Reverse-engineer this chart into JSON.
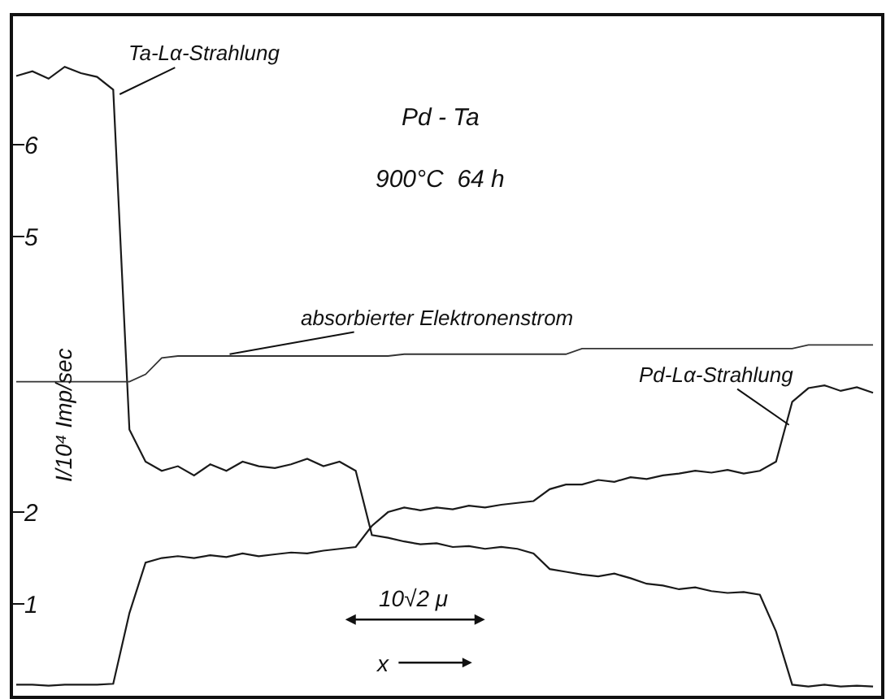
{
  "chart_data": {
    "type": "line",
    "title": "Pd - Ta",
    "subtitle": "900°C  64 h",
    "xlabel": "x",
    "ylabel": "I/10⁴ Imp/sec",
    "categories": [
      null,
      null,
      null,
      null,
      null,
      null,
      null,
      null,
      null,
      null,
      null,
      null,
      null,
      null,
      null,
      null,
      null,
      null,
      null,
      null,
      null,
      null,
      null,
      null,
      null,
      null,
      null,
      null,
      null,
      null,
      null,
      null,
      null,
      null,
      null,
      null,
      null,
      null,
      null,
      null,
      null,
      null,
      null,
      null,
      null,
      null,
      null,
      null,
      null,
      null,
      null,
      null,
      null,
      null
    ],
    "ylim": [
      0,
      7.4
    ],
    "yticks": [
      1,
      2,
      5,
      6
    ],
    "legend": false,
    "marker": "none",
    "line_style": "solid",
    "series": [
      {
        "name": "Ta-Lα-Strahlung",
        "color": "#1a1a1a",
        "values": [
          6.75,
          6.8,
          6.72,
          6.85,
          6.78,
          6.74,
          6.6,
          2.9,
          2.55,
          2.45,
          2.5,
          2.4,
          2.52,
          2.45,
          2.55,
          2.5,
          2.48,
          2.52,
          2.58,
          2.5,
          2.55,
          2.45,
          1.75,
          1.72,
          1.68,
          1.65,
          1.66,
          1.62,
          1.63,
          1.6,
          1.62,
          1.6,
          1.55,
          1.38,
          1.35,
          1.32,
          1.3,
          1.33,
          1.28,
          1.22,
          1.2,
          1.16,
          1.18,
          1.14,
          1.12,
          1.13,
          1.1,
          0.7,
          0.12,
          0.1,
          0.12,
          0.1,
          0.11,
          0.1
        ]
      },
      {
        "name": "Pd-Lα-Strahlung",
        "color": "#1a1a1a",
        "values": [
          0.12,
          0.12,
          0.11,
          0.12,
          0.12,
          0.12,
          0.13,
          0.9,
          1.45,
          1.5,
          1.52,
          1.5,
          1.53,
          1.51,
          1.55,
          1.52,
          1.54,
          1.56,
          1.55,
          1.58,
          1.6,
          1.62,
          1.85,
          2.0,
          2.05,
          2.02,
          2.05,
          2.03,
          2.07,
          2.05,
          2.08,
          2.1,
          2.12,
          2.25,
          2.3,
          2.3,
          2.35,
          2.33,
          2.38,
          2.36,
          2.4,
          2.42,
          2.45,
          2.43,
          2.46,
          2.42,
          2.45,
          2.55,
          3.2,
          3.35,
          3.38,
          3.32,
          3.36,
          3.3
        ]
      },
      {
        "name": "absorbierter Elektronenstrom",
        "color": "#333333",
        "values": [
          3.42,
          3.42,
          3.42,
          3.42,
          3.42,
          3.42,
          3.42,
          3.42,
          3.5,
          3.68,
          3.7,
          3.7,
          3.7,
          3.7,
          3.7,
          3.7,
          3.7,
          3.7,
          3.7,
          3.7,
          3.7,
          3.7,
          3.7,
          3.7,
          3.72,
          3.72,
          3.72,
          3.72,
          3.72,
          3.72,
          3.72,
          3.72,
          3.72,
          3.72,
          3.72,
          3.78,
          3.78,
          3.78,
          3.78,
          3.78,
          3.78,
          3.78,
          3.78,
          3.78,
          3.78,
          3.78,
          3.78,
          3.78,
          3.78,
          3.82,
          3.82,
          3.82,
          3.82,
          3.82
        ]
      }
    ],
    "annotations": [
      "10√2 μ"
    ]
  }
}
